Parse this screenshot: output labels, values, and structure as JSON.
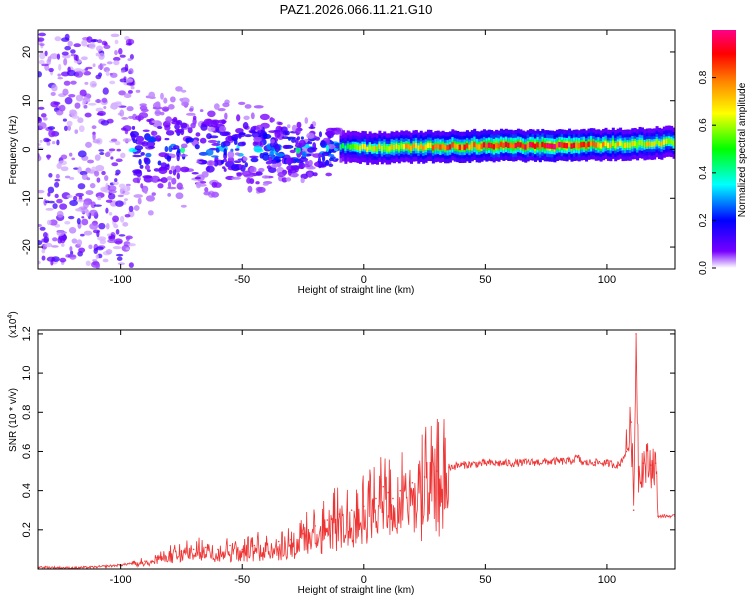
{
  "title": "PAZ1.2026.066.11.21.G10",
  "chart_data": [
    {
      "type": "heatmap",
      "name": "spectrogram",
      "xlabel": "Height of straight line (km)",
      "ylabel": "Frequency (Hz)",
      "xlim": [
        -134,
        128
      ],
      "ylim": [
        -24.5,
        24.5
      ],
      "xticks": [
        -100,
        -50,
        0,
        50,
        100
      ],
      "yticks": [
        -20,
        -10,
        0,
        10,
        20
      ],
      "grid": false,
      "colorbar": {
        "label": "Normalized spectral amplitude",
        "range": [
          0,
          1
        ],
        "ticks": [
          "0.0",
          "0.2",
          "0.4",
          "0.6",
          "0.8"
        ],
        "colormap": [
          "#ffffff",
          "#7700ff",
          "#0000ff",
          "#00ffff",
          "#00ff00",
          "#ffff00",
          "#ff8800",
          "#ff0000",
          "#ff0088"
        ]
      },
      "ridge": {
        "description": "narrow high-amplitude band near 0–2 Hz",
        "points": [
          {
            "x": -10,
            "freq": 0.5,
            "amp": 0.4
          },
          {
            "x": 0,
            "freq": 0.3,
            "amp": 0.6
          },
          {
            "x": 20,
            "freq": 0.5,
            "amp": 0.7
          },
          {
            "x": 50,
            "freq": 0.8,
            "amp": 0.85
          },
          {
            "x": 80,
            "freq": 0.8,
            "amp": 0.9
          },
          {
            "x": 100,
            "freq": 1.0,
            "amp": 0.7
          },
          {
            "x": 128,
            "freq": 1.5,
            "amp": 0.6
          }
        ]
      },
      "scatter_region": {
        "x_from": -134,
        "x_to": -95,
        "freq_from": -24,
        "freq_to": 24
      }
    },
    {
      "type": "line",
      "name": "snr",
      "xlabel": "Height of straight line (km)",
      "ylabel": "SNR (10 * v/v)",
      "y_multiplier": "(x10",
      "y_multiplier_exp": "4",
      "y_multiplier_close": ")",
      "xlim": [
        -134,
        128
      ],
      "ylim": [
        0,
        1.22
      ],
      "xticks": [
        -100,
        -50,
        0,
        50,
        100
      ],
      "yticks": [
        0.2,
        0.4,
        0.6,
        0.8,
        1.0,
        1.2
      ],
      "ytick_labels": [
        "0.2",
        "0.4",
        "0.6",
        "0.8",
        "1.0",
        "1.2"
      ],
      "color": "#ee3333",
      "series": [
        {
          "name": "SNR",
          "x": [
            -134,
            -120,
            -110,
            -100,
            -95,
            -90,
            -85,
            -80,
            -75,
            -70,
            -65,
            -60,
            -55,
            -50,
            -45,
            -40,
            -35,
            -30,
            -25,
            -20,
            -15,
            -10,
            -5,
            0,
            5,
            8,
            10,
            12,
            15,
            20,
            25,
            30,
            35,
            40,
            50,
            60,
            70,
            80,
            85,
            88,
            90,
            95,
            100,
            105,
            108,
            110,
            111,
            112,
            113,
            115,
            118,
            120,
            121,
            125,
            128
          ],
          "values": [
            0.01,
            0.005,
            0.01,
            0.02,
            0.03,
            0.04,
            0.06,
            0.08,
            0.09,
            0.1,
            0.11,
            0.1,
            0.12,
            0.1,
            0.12,
            0.13,
            0.14,
            0.15,
            0.18,
            0.22,
            0.25,
            0.28,
            0.3,
            0.32,
            0.36,
            0.42,
            0.39,
            0.36,
            0.4,
            0.44,
            0.47,
            0.5,
            0.52,
            0.53,
            0.54,
            0.54,
            0.545,
            0.55,
            0.55,
            0.57,
            0.54,
            0.545,
            0.54,
            0.53,
            0.6,
            0.75,
            0.3,
            1.2,
            0.5,
            0.54,
            0.53,
            0.54,
            0.27,
            0.27,
            0.27
          ]
        }
      ]
    }
  ]
}
